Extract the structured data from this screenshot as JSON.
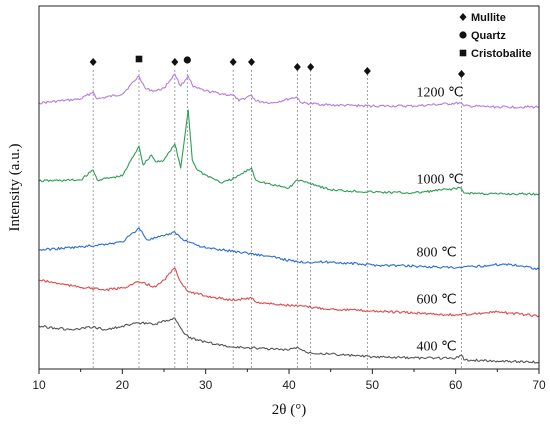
{
  "chart_data": {
    "type": "line",
    "xlabel": "2θ (°)",
    "ylabel": "Intensity (a.u.)",
    "xlim": [
      10,
      70
    ],
    "x_ticks": [
      10,
      20,
      30,
      40,
      50,
      60,
      70
    ],
    "y_ticks_shown": false,
    "grid": false,
    "series": [
      {
        "name": "1200 ℃",
        "color": "#b57be0",
        "points": [
          [
            10,
            103
          ],
          [
            15,
            99
          ],
          [
            16.5,
            92
          ],
          [
            17,
            99
          ],
          [
            20,
            94
          ],
          [
            22,
            76
          ],
          [
            22.8,
            89
          ],
          [
            24,
            91
          ],
          [
            25,
            88
          ],
          [
            26.3,
            74
          ],
          [
            27,
            86
          ],
          [
            27.9,
            76
          ],
          [
            28.5,
            87
          ],
          [
            30,
            91
          ],
          [
            33.5,
            96
          ],
          [
            34,
            101
          ],
          [
            35.5,
            95
          ],
          [
            36,
            101
          ],
          [
            38,
            103
          ],
          [
            40.9,
            97
          ],
          [
            41.5,
            103
          ],
          [
            45,
            105
          ],
          [
            50,
            106
          ],
          [
            55,
            106
          ],
          [
            60.6,
            103
          ],
          [
            61,
            106
          ],
          [
            65,
            107
          ],
          [
            70,
            107
          ]
        ]
      },
      {
        "name": "1000 ℃",
        "color": "#2e9e55",
        "points": [
          [
            10,
            181
          ],
          [
            15,
            180
          ],
          [
            16.5,
            170
          ],
          [
            17,
            180
          ],
          [
            20,
            176
          ],
          [
            22,
            146
          ],
          [
            22.5,
            165
          ],
          [
            23.5,
            155
          ],
          [
            24,
            162
          ],
          [
            25,
            160
          ],
          [
            26.3,
            144
          ],
          [
            27,
            168
          ],
          [
            27.9,
            110
          ],
          [
            28.4,
            160
          ],
          [
            29,
            170
          ],
          [
            30,
            175
          ],
          [
            32,
            183
          ],
          [
            33.5,
            178
          ],
          [
            35.5,
            168
          ],
          [
            36,
            180
          ],
          [
            38,
            185
          ],
          [
            40,
            188
          ],
          [
            41,
            180
          ],
          [
            42.5,
            183
          ],
          [
            45,
            190
          ],
          [
            50,
            192
          ],
          [
            55,
            193
          ],
          [
            60.6,
            188
          ],
          [
            61,
            193
          ],
          [
            65,
            194
          ],
          [
            70,
            194
          ]
        ]
      },
      {
        "name": "800 ℃",
        "color": "#2a6dd6",
        "points": [
          [
            10,
            250
          ],
          [
            15,
            247
          ],
          [
            18,
            244
          ],
          [
            20,
            242
          ],
          [
            22,
            228
          ],
          [
            23,
            240
          ],
          [
            25,
            236
          ],
          [
            26.3,
            232
          ],
          [
            27,
            238
          ],
          [
            28,
            242
          ],
          [
            30,
            248
          ],
          [
            32,
            250
          ],
          [
            35,
            253
          ],
          [
            38,
            257
          ],
          [
            41,
            262
          ],
          [
            45,
            262
          ],
          [
            50,
            265
          ],
          [
            55,
            266
          ],
          [
            60,
            268
          ],
          [
            66,
            264
          ],
          [
            68,
            266
          ],
          [
            70,
            269
          ]
        ]
      },
      {
        "name": "600 ℃",
        "color": "#e0494a",
        "points": [
          [
            10,
            280
          ],
          [
            14,
            286
          ],
          [
            18,
            290
          ],
          [
            20,
            288
          ],
          [
            22,
            282
          ],
          [
            24,
            287
          ],
          [
            25,
            280
          ],
          [
            26.3,
            268
          ],
          [
            27,
            282
          ],
          [
            28,
            292
          ],
          [
            30,
            296
          ],
          [
            33,
            300
          ],
          [
            35.5,
            298
          ],
          [
            36,
            302
          ],
          [
            38,
            304
          ],
          [
            41,
            306
          ],
          [
            45,
            309
          ],
          [
            50,
            311
          ],
          [
            55,
            313
          ],
          [
            60,
            315
          ],
          [
            65,
            312
          ],
          [
            70,
            316
          ]
        ]
      },
      {
        "name": "400 ℃",
        "color": "#555555",
        "points": [
          [
            10,
            326
          ],
          [
            14,
            330
          ],
          [
            16.5,
            327
          ],
          [
            18,
            330
          ],
          [
            20,
            326
          ],
          [
            22,
            323
          ],
          [
            24,
            324
          ],
          [
            26.3,
            318
          ],
          [
            27,
            328
          ],
          [
            28,
            338
          ],
          [
            30,
            342
          ],
          [
            33,
            347
          ],
          [
            36,
            348
          ],
          [
            40,
            350
          ],
          [
            41,
            347
          ],
          [
            42,
            352
          ],
          [
            45,
            354
          ],
          [
            50,
            357
          ],
          [
            55,
            358
          ],
          [
            60,
            358
          ],
          [
            60.7,
            355
          ],
          [
            61,
            360
          ],
          [
            65,
            361
          ],
          [
            70,
            362
          ]
        ]
      }
    ],
    "series_label_x": 62.5,
    "reference_lines": [
      16.5,
      22.0,
      26.3,
      27.8,
      33.3,
      35.5,
      41.0,
      42.6,
      49.4,
      60.7
    ],
    "phase_markers": [
      {
        "x": 16.5,
        "phase": "Mullite"
      },
      {
        "x": 22.0,
        "phase": "Cristobalite"
      },
      {
        "x": 26.3,
        "phase": "Mullite"
      },
      {
        "x": 27.8,
        "phase": "Quartz"
      },
      {
        "x": 33.3,
        "phase": "Mullite"
      },
      {
        "x": 35.5,
        "phase": "Mullite"
      },
      {
        "x": 41.0,
        "phase": "Mullite"
      },
      {
        "x": 42.6,
        "phase": "Mullite"
      },
      {
        "x": 49.4,
        "phase": "Mullite"
      },
      {
        "x": 60.7,
        "phase": "Mullite"
      }
    ],
    "legend": {
      "placement": "top-right",
      "entries": [
        {
          "label": "Mullite",
          "symbol": "diamond"
        },
        {
          "label": "Quartz",
          "symbol": "circle"
        },
        {
          "label": "Cristobalite",
          "symbol": "square"
        }
      ]
    }
  }
}
